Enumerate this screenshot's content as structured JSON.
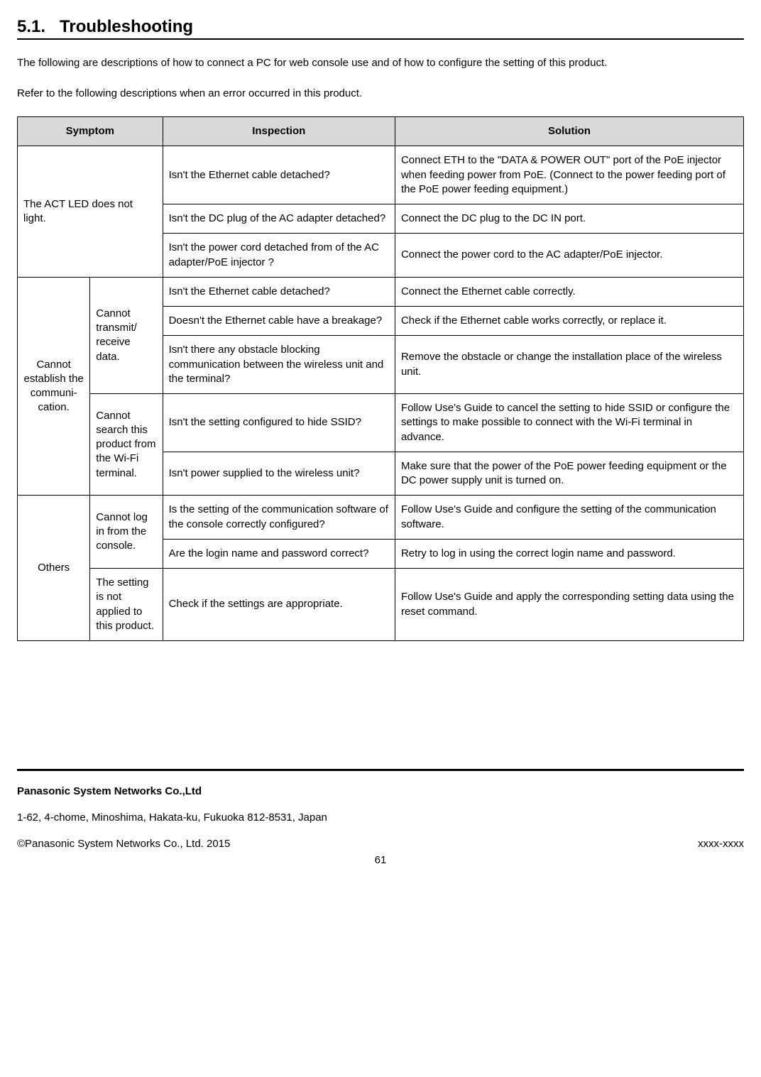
{
  "section": {
    "number": "5.1.",
    "title": "Troubleshooting"
  },
  "intro": {
    "p1": "The following are descriptions of how to connect a PC for web console use and of how to configure the setting of this product.",
    "p2": "Refer to the following descriptions when an error occurred in this product."
  },
  "table": {
    "headers": {
      "symptom": "Symptom",
      "inspection": "Inspection",
      "solution": "Solution"
    },
    "groups": [
      {
        "symptom": "The ACT LED does not light.",
        "subsymptom": null,
        "colspan": 2,
        "rows": [
          {
            "inspection": "Isn't the Ethernet cable detached?",
            "solution": "Connect ETH to the \"DATA & POWER OUT\" port of the PoE injector when feeding power from PoE. (Connect to the power feeding port of the PoE power feeding equipment.)"
          },
          {
            "inspection": "Isn't the DC plug of the AC adapter detached?",
            "solution": "Connect the DC plug to the DC IN port."
          },
          {
            "inspection": "Isn't the power cord detached from of the AC adapter/PoE injector ?",
            "solution": "Connect the power cord to the AC adapter/PoE injector."
          }
        ]
      },
      {
        "symptom": "Cannot establish the communi­cation.",
        "subgroups": [
          {
            "subsymptom": "Cannot transmit/ receive data.",
            "rows": [
              {
                "inspection": "Isn't the Ethernet cable detached?",
                "solution": "Connect the Ethernet cable correctly."
              },
              {
                "inspection": "Doesn't the Ethernet cable have a breakage?",
                "solution": "Check if the Ethernet cable works correctly, or replace it."
              },
              {
                "inspection": "Isn't there any obstacle blocking communication between the wireless unit and the terminal?",
                "solution": "Remove the obstacle or change the installation place of the wireless unit."
              }
            ]
          },
          {
            "subsymptom": "Cannot search this product from the Wi-Fi terminal.",
            "rows": [
              {
                "inspection": "Isn't the setting configured to hide SSID?",
                "solution": "Follow Use's Guide to cancel the setting to hide SSID or configure the settings to make possible to connect with the Wi-Fi terminal in advance."
              },
              {
                "inspection": "Isn't power supplied to the wireless unit?",
                "solution": "Make sure that the power of the PoE power feeding equipment or the DC power supply unit is turned on."
              }
            ]
          }
        ]
      },
      {
        "symptom": "Others",
        "subgroups": [
          {
            "subsymptom": "Cannot log in from the console.",
            "rows": [
              {
                "inspection": "Is the setting of the communication software of the console correctly configured?",
                "solution": "Follow Use's Guide and configure the setting of the communication software."
              },
              {
                "inspection": "Are the login name and password correct?",
                "solution": "Retry to log in using the correct login name and password."
              }
            ]
          },
          {
            "subsymptom": "The setting is not applied to this product.",
            "rows": [
              {
                "inspection": "Check if the settings are appropriate.",
                "solution": "Follow Use's Guide and apply the corresponding setting data using the reset command."
              }
            ]
          }
        ]
      }
    ]
  },
  "footer": {
    "company": "Panasonic System Networks Co.,Ltd",
    "address": "1-62, 4-chome, Minoshima, Hakata-ku, Fukuoka 812-8531, Japan",
    "copyright": "©Panasonic System Networks Co., Ltd. 2015",
    "code": "xxxx-xxxx",
    "page": "61"
  },
  "styling": {
    "header_bg": "#d9d9d9",
    "border_color": "#000000",
    "text_color": "#000000",
    "background_color": "#ffffff",
    "body_fontsize": 15,
    "title_fontsize": 24,
    "font_family": "Arial"
  }
}
